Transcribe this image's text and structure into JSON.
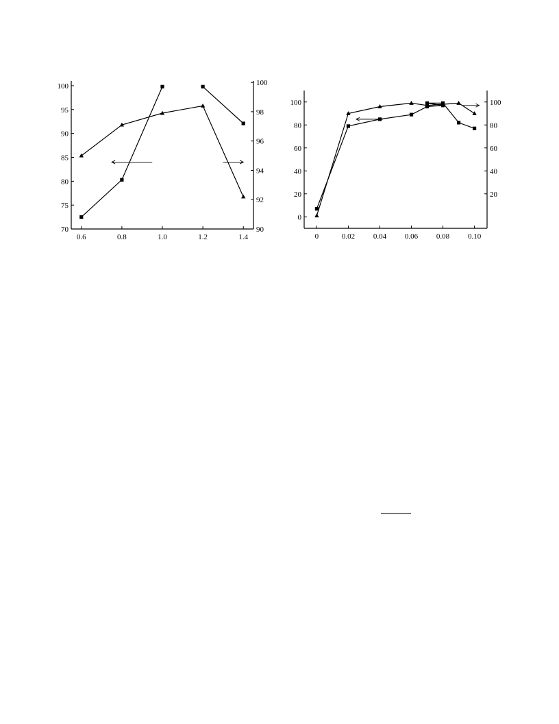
{
  "chart_data": [
    {
      "type": "line",
      "title": "",
      "xlabel": "",
      "ylabel": "",
      "y2label": "",
      "grid": false,
      "legend": "none",
      "x_ticks": [
        "0.6",
        "0.8",
        "1.0",
        "1.2",
        "1.4"
      ],
      "x_range": [
        0.55,
        1.45
      ],
      "y_left_ticks": [
        "70",
        "75",
        "80",
        "85",
        "90",
        "95",
        "100"
      ],
      "y_left_range": [
        70,
        101
      ],
      "y_right_ticks": [
        "90",
        "92",
        "94",
        "96",
        "98",
        "100"
      ],
      "y_right_range": [
        90,
        100.1
      ],
      "series": [
        {
          "marker": "square",
          "axis": "left",
          "segments": [
            [
              [
                0.6,
                72.5
              ],
              [
                0.8,
                80.3
              ],
              [
                1.0,
                99.8
              ]
            ],
            [
              [
                1.2,
                99.8
              ],
              [
                1.4,
                92.1
              ]
            ]
          ]
        },
        {
          "marker": "triangle",
          "axis": "right",
          "segments": [
            [
              [
                0.6,
                95.0
              ],
              [
                0.8,
                97.1
              ],
              [
                1.0,
                97.9
              ],
              [
                1.2,
                98.4
              ],
              [
                1.4,
                92.2
              ]
            ]
          ]
        }
      ],
      "arrows": [
        {
          "direction": "left",
          "x": 0.95,
          "x_end": 0.75,
          "y": 84.0,
          "axis": "left"
        },
        {
          "direction": "right",
          "x": 1.3,
          "x_end": 1.4,
          "y": 84.0,
          "axis": "left"
        }
      ]
    },
    {
      "type": "line",
      "title": "",
      "xlabel": "",
      "ylabel": "",
      "y2label": "",
      "grid": false,
      "legend": "none",
      "x_ticks": [
        "0",
        "0.02",
        "0.04",
        "0.06",
        "0.08",
        "0.10"
      ],
      "x_range": [
        -0.008,
        0.108
      ],
      "y_left_ticks": [
        "0",
        "20",
        "40",
        "60",
        "80",
        "100"
      ],
      "y_left_range": [
        -10,
        110
      ],
      "y_right_ticks": [
        "20",
        "40",
        "60",
        "80",
        "100"
      ],
      "y_right_range": [
        -10,
        110
      ],
      "series": [
        {
          "marker": "square",
          "axis": "left",
          "segments": [
            [
              [
                0,
                7
              ],
              [
                0.02,
                79
              ],
              [
                0.04,
                85
              ],
              [
                0.06,
                89
              ],
              [
                0.07,
                96
              ],
              [
                0.08,
                97
              ],
              [
                0.07,
                99
              ],
              [
                0.08,
                99
              ],
              [
                0.09,
                82
              ],
              [
                0.1,
                77
              ]
            ]
          ]
        },
        {
          "marker": "triangle",
          "axis": "right",
          "segments": [
            [
              [
                0,
                1
              ],
              [
                0.02,
                90
              ],
              [
                0.04,
                96
              ],
              [
                0.06,
                99
              ],
              [
                0.07,
                97
              ],
              [
                0.08,
                98
              ],
              [
                0.09,
                99
              ],
              [
                0.1,
                90
              ]
            ]
          ]
        }
      ],
      "arrows": [
        {
          "direction": "left",
          "x": 0.042,
          "x_end": 0.025,
          "y": 85,
          "axis": "left"
        },
        {
          "direction": "right",
          "x": 0.092,
          "x_end": 0.103,
          "y": 97,
          "axis": "left"
        }
      ]
    }
  ]
}
